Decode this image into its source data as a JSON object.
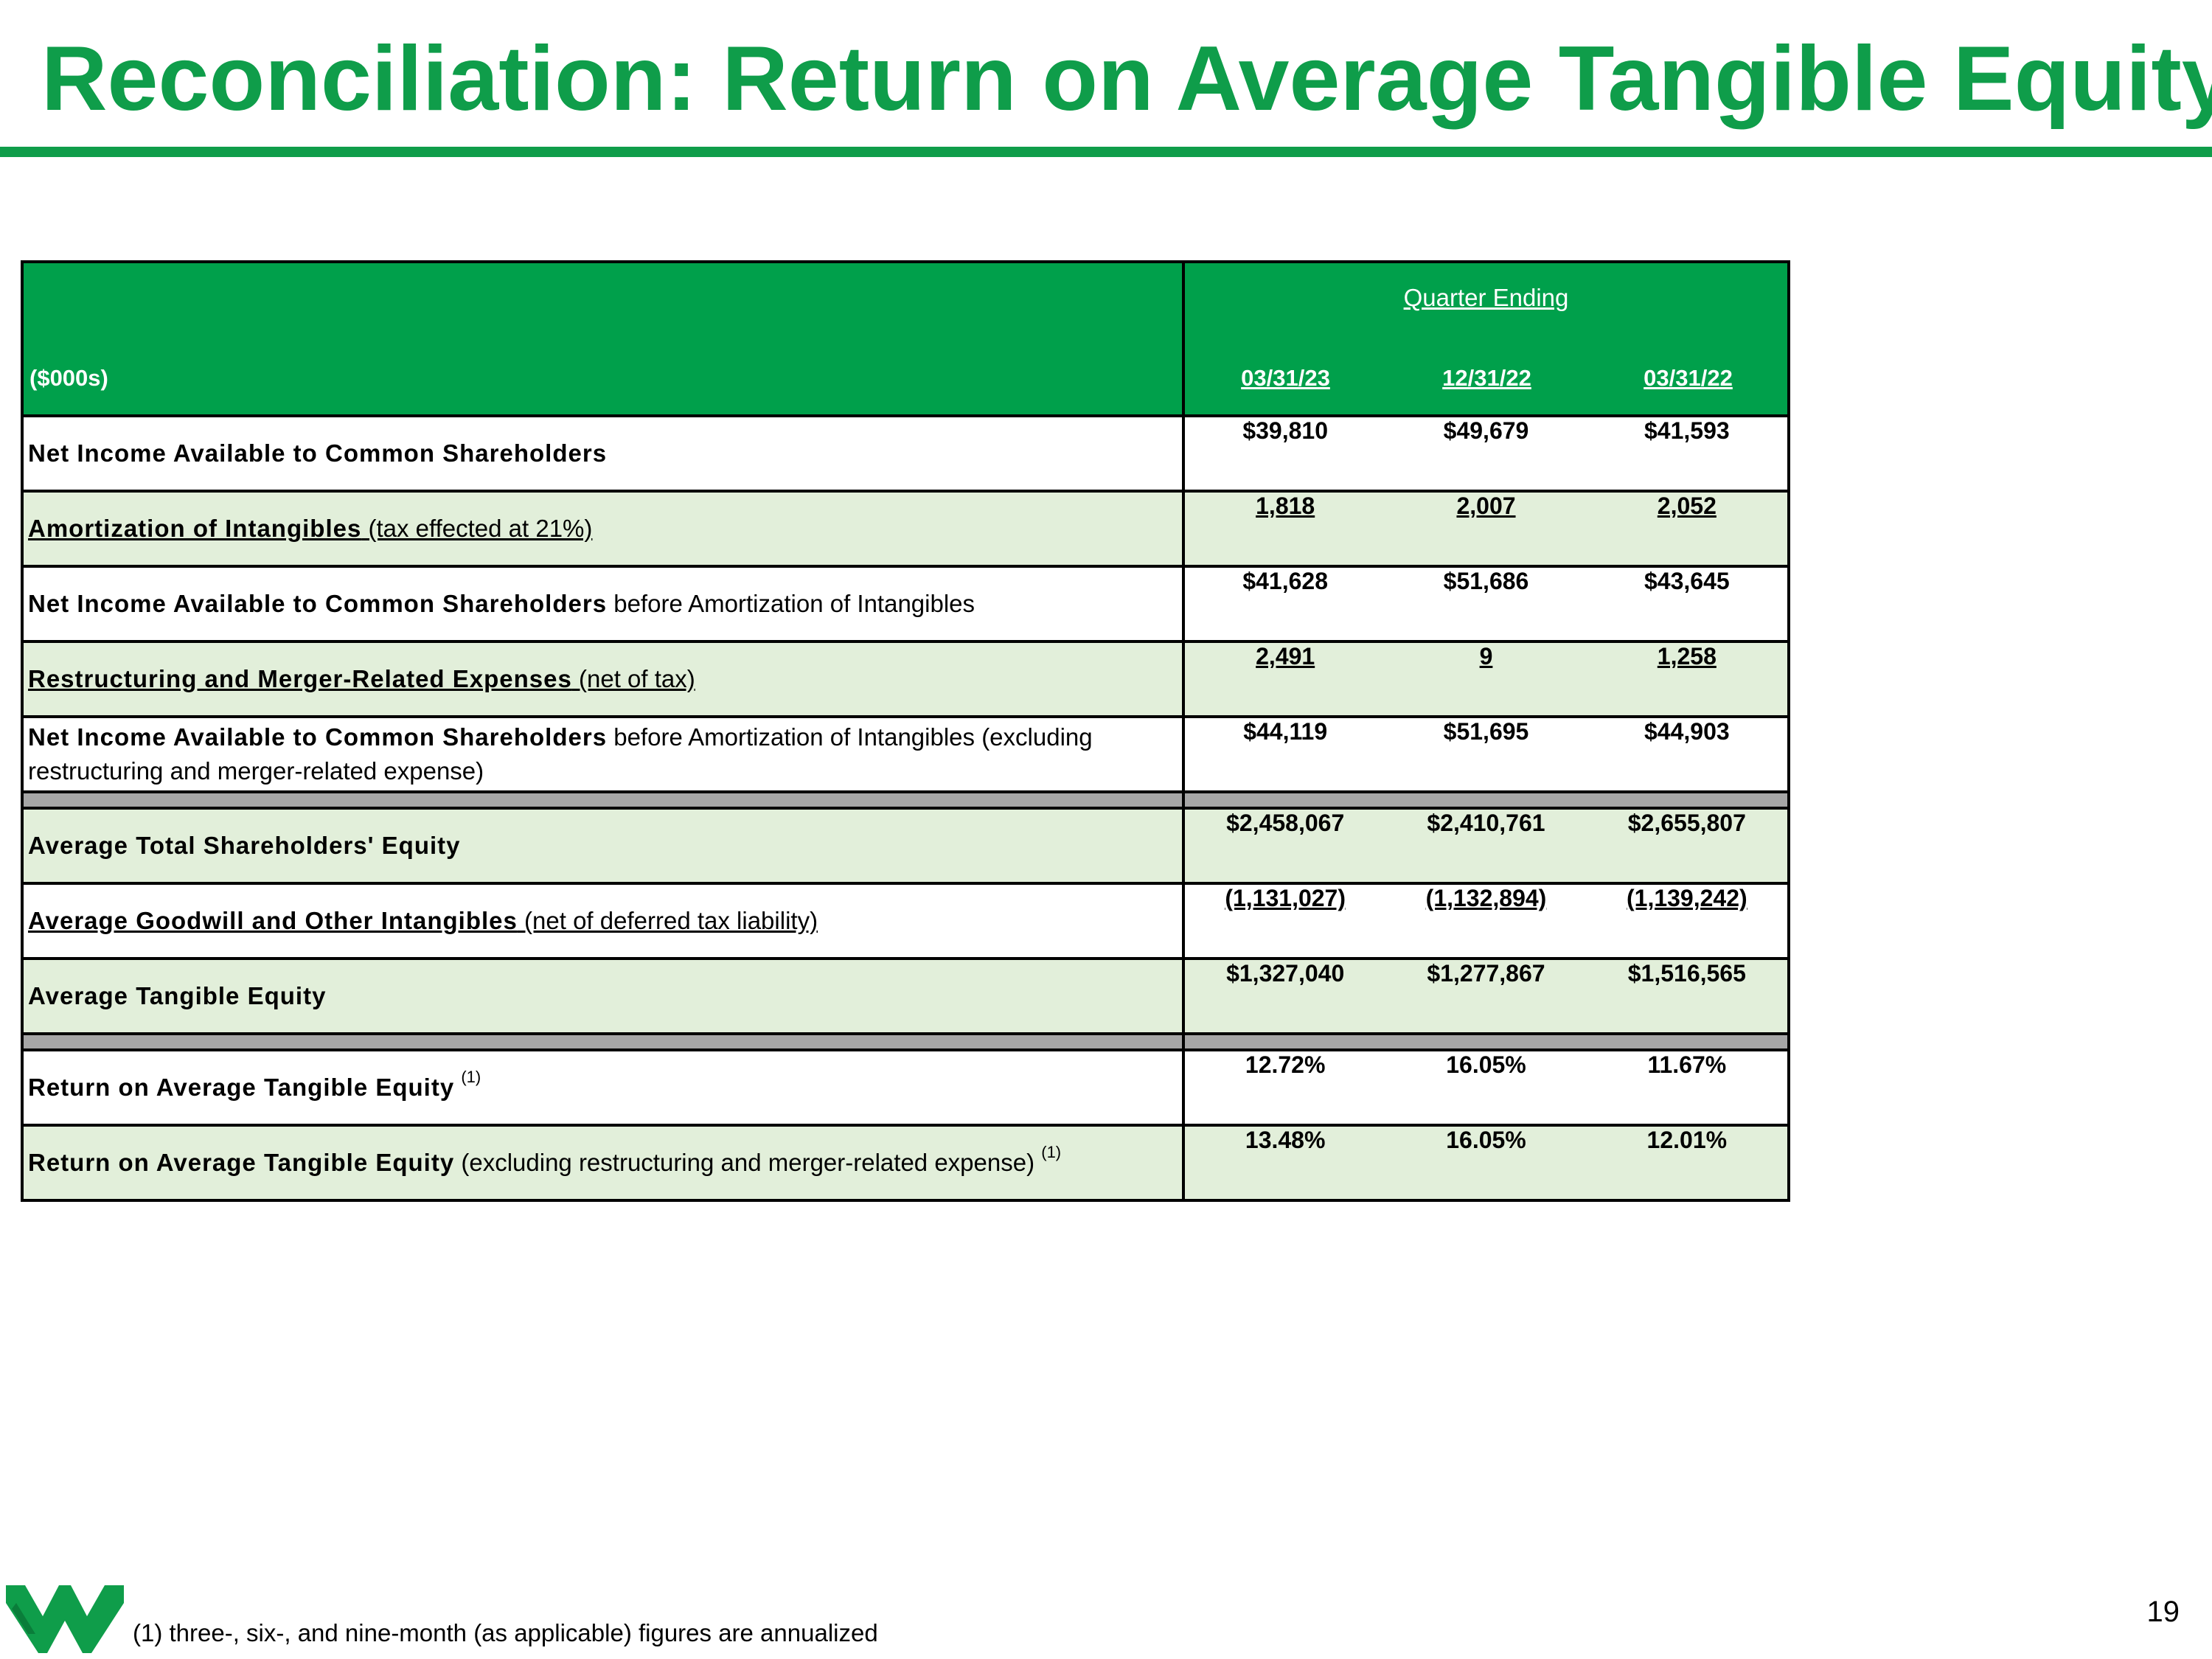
{
  "slide": {
    "title": "Reconciliation: Return on Average Tangible Equity",
    "page_number": "19",
    "footnote": "(1) three-, six-, and nine-month (as applicable) figures are annualized",
    "brand_color": "#0f9d4a",
    "header_color": "#00a04b",
    "shade_color": "#e2efda",
    "separator_color": "#a6a6a6"
  },
  "table": {
    "units_label": "($000s)",
    "group_header": "Quarter Ending",
    "periods": [
      "03/31/23",
      "12/31/22",
      "03/31/22"
    ],
    "rows": [
      {
        "label_bold": "Net Income Available to Common Shareholders",
        "label_rest": "",
        "sup": "",
        "values": [
          "$39,810",
          "$49,679",
          "$41,593"
        ]
      },
      {
        "label_bold": "Amortization of Intangibles",
        "label_rest": " (tax effected at 21%)",
        "sup": "",
        "values": [
          "1,818",
          "2,007",
          "2,052"
        ]
      },
      {
        "label_bold": "Net Income Available to Common Shareholders",
        "label_rest": " before Amortization of Intangibles",
        "sup": "",
        "values": [
          "$41,628",
          "$51,686",
          "$43,645"
        ]
      },
      {
        "label_bold": "Restructuring and Merger-Related Expenses",
        "label_rest": " (net of tax)",
        "sup": "",
        "values": [
          "2,491",
          "9",
          "1,258"
        ]
      },
      {
        "label_bold": "Net Income Available to Common Shareholders",
        "label_rest": " before Amortization of Intangibles (excluding restructuring and merger-related expense)",
        "sup": "",
        "values": [
          "$44,119",
          "$51,695",
          "$44,903"
        ]
      },
      {
        "label_bold": "Average Total Shareholders' Equity",
        "label_rest": "",
        "sup": "",
        "values": [
          "$2,458,067",
          "$2,410,761",
          "$2,655,807"
        ]
      },
      {
        "label_bold": "Average Goodwill and Other Intangibles",
        "label_rest": " (net of deferred tax liability)",
        "sup": "",
        "values": [
          "(1,131,027)",
          "(1,132,894)",
          "(1,139,242)"
        ]
      },
      {
        "label_bold": "Average Tangible Equity",
        "label_rest": "",
        "sup": "",
        "values": [
          "$1,327,040",
          "$1,277,867",
          "$1,516,565"
        ]
      },
      {
        "label_bold": "Return on Average Tangible Equity",
        "label_rest": " ",
        "sup": "(1)",
        "values": [
          "12.72%",
          "16.05%",
          "11.67%"
        ]
      },
      {
        "label_bold": "Return on Average Tangible Equity",
        "label_rest": " (excluding restructuring and merger-related expense) ",
        "sup": "(1)",
        "values": [
          "13.48%",
          "16.05%",
          "12.01%"
        ]
      }
    ]
  }
}
